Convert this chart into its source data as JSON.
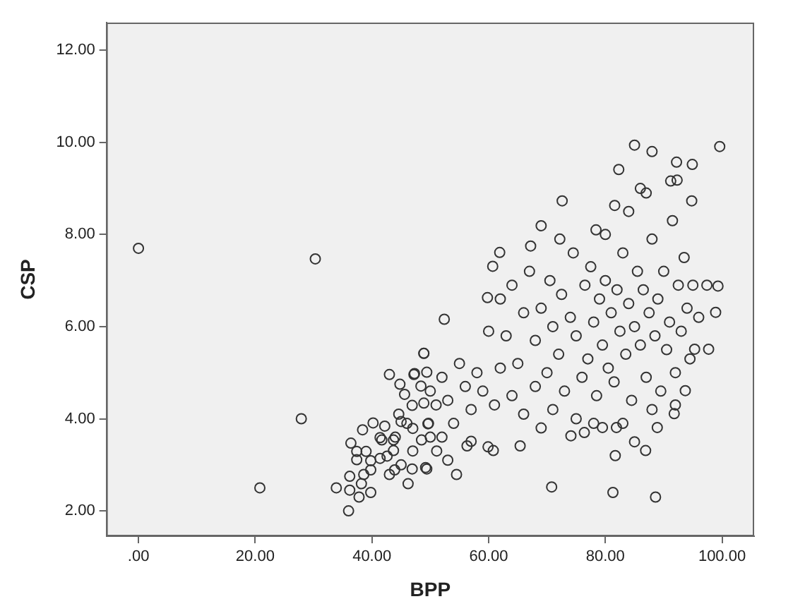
{
  "chart_data": {
    "type": "scatter",
    "xlabel": "BPP",
    "ylabel": "CSP",
    "marker": "circle",
    "grid": false,
    "legend": false,
    "xlim": [
      -5.5,
      105.5
    ],
    "ylim": [
      1.45,
      12.6
    ],
    "xticks": [
      {
        "value": 0,
        "label": ".00"
      },
      {
        "value": 20,
        "label": "20.00"
      },
      {
        "value": 40,
        "label": "40.00"
      },
      {
        "value": 60,
        "label": "60.00"
      },
      {
        "value": 80,
        "label": "80.00"
      },
      {
        "value": 100,
        "label": "100.00"
      }
    ],
    "yticks": [
      {
        "value": 2,
        "label": "2.00"
      },
      {
        "value": 4,
        "label": "4.00"
      },
      {
        "value": 6,
        "label": "6.00"
      },
      {
        "value": 8,
        "label": "8.00"
      },
      {
        "value": 10,
        "label": "10.00"
      },
      {
        "value": 12,
        "label": "12.00"
      }
    ],
    "series": [
      {
        "color": "#333333",
        "x": [
          85.0,
          99.6,
          88.0,
          82.3,
          92.2,
          94.9,
          72.6,
          70.8,
          81.3,
          88.6,
          54.5,
          86.9,
          81.7,
          69.0,
          99.3,
          97.4,
          98.9,
          97.7,
          95.3,
          93.7,
          91.8,
          88.9,
          81.9,
          79.5,
          74.1,
          76.4,
          65.4,
          59.9,
          60.8,
          56.3,
          57.0,
          52.4,
          61.9,
          60.7,
          59.8,
          67.2,
          94.8,
          92.3,
          91.2,
          81.6,
          78.4,
          48.9,
          47.3,
          51.1,
          49.2,
          49.7,
          72.2,
          0.0,
          30.3,
          27.9,
          20.8,
          36.0,
          33.9,
          43.0,
          48.9,
          47.2,
          49.4,
          48.4,
          44.8,
          45.6,
          38.4,
          40.2,
          36.4,
          37.4,
          39.8,
          37.8,
          36.2,
          36.2,
          38.6,
          41.7,
          43.7,
          43.7,
          43.9,
          46.2,
          46.9,
          49.4,
          47.0,
          49.6,
          48.5,
          46.9,
          48.9,
          44.6,
          45.0,
          41.4,
          39.0,
          37.4,
          41.4,
          43.0,
          39.8,
          39.8,
          38.2,
          42.6,
          42.2,
          62,
          63,
          64,
          65,
          66,
          67,
          68,
          69,
          70,
          70.5,
          71,
          72,
          72.5,
          73,
          74,
          74.5,
          75,
          76,
          76.5,
          77,
          77.5,
          78,
          78.5,
          79,
          79.5,
          80,
          80.5,
          81,
          81.5,
          82,
          82.5,
          83,
          83.5,
          84,
          84.5,
          85,
          85.5,
          86,
          86.5,
          87,
          87.5,
          88,
          88.5,
          89,
          89.5,
          90,
          90.5,
          91,
          91.5,
          92,
          92.5,
          93,
          93.5,
          94,
          94.5,
          95,
          96,
          84,
          86,
          87,
          80,
          68,
          66,
          64,
          62,
          60,
          58,
          56,
          57,
          55,
          53,
          52,
          54,
          59,
          61,
          71,
          75,
          69,
          83,
          88,
          92,
          85,
          78,
          44,
          46,
          50,
          51,
          53,
          47,
          45,
          52,
          50
        ],
        "values": [
          9.94,
          9.91,
          9.8,
          9.41,
          9.57,
          9.52,
          8.73,
          2.52,
          2.4,
          2.3,
          2.79,
          3.31,
          3.2,
          8.19,
          6.88,
          6.9,
          6.31,
          5.51,
          5.51,
          4.61,
          4.11,
          3.81,
          3.81,
          3.81,
          3.63,
          3.7,
          3.41,
          3.39,
          3.31,
          3.41,
          3.51,
          6.16,
          7.61,
          7.31,
          6.63,
          7.75,
          8.73,
          9.18,
          9.16,
          8.63,
          8.1,
          5.42,
          4.98,
          3.3,
          2.94,
          3.9,
          7.9,
          7.7,
          7.47,
          4.0,
          2.5,
          2.0,
          2.5,
          4.96,
          5.42,
          4.96,
          5.01,
          4.71,
          4.75,
          4.53,
          3.76,
          3.91,
          3.47,
          3.11,
          2.4,
          2.3,
          2.75,
          2.45,
          2.79,
          3.54,
          3.54,
          3.31,
          2.89,
          2.59,
          2.91,
          2.91,
          3.79,
          3.89,
          3.54,
          4.29,
          4.34,
          4.1,
          3.94,
          3.59,
          3.29,
          3.29,
          3.14,
          2.79,
          3.09,
          2.89,
          2.59,
          3.19,
          3.84,
          6.6,
          5.8,
          6.9,
          5.2,
          6.3,
          7.2,
          5.7,
          6.4,
          5.0,
          7.0,
          6.0,
          5.4,
          6.7,
          4.6,
          6.2,
          7.6,
          5.8,
          4.9,
          6.9,
          5.3,
          7.3,
          6.1,
          4.5,
          6.6,
          5.6,
          7.0,
          5.1,
          6.3,
          4.8,
          6.8,
          5.9,
          7.6,
          5.4,
          6.5,
          4.4,
          6.0,
          7.2,
          5.6,
          6.8,
          4.9,
          6.3,
          7.9,
          5.8,
          6.6,
          4.6,
          7.2,
          5.5,
          6.1,
          8.3,
          5.0,
          6.9,
          5.9,
          7.5,
          6.4,
          5.3,
          6.9,
          6.2,
          8.5,
          9.0,
          8.9,
          8.0,
          4.7,
          4.1,
          4.5,
          5.1,
          5.9,
          5.0,
          4.7,
          4.2,
          5.2,
          4.4,
          3.6,
          3.9,
          4.6,
          4.3,
          4.2,
          4.0,
          3.8,
          3.9,
          4.2,
          4.3,
          3.5,
          3.9,
          3.6,
          3.9,
          3.6,
          4.3,
          3.1,
          3.3,
          3.0,
          4.9,
          4.6
        ]
      }
    ]
  }
}
